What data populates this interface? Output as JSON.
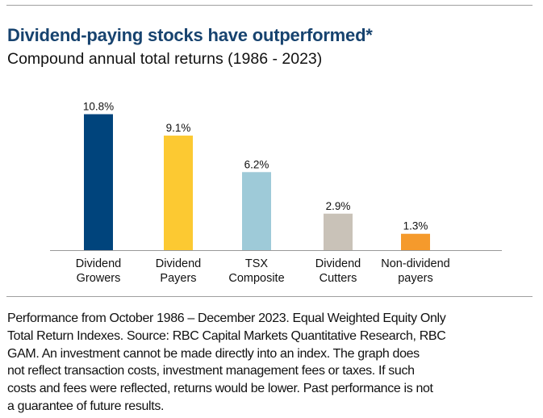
{
  "chart_data": {
    "type": "bar",
    "title": "Dividend-paying stocks have outperformed*",
    "subtitle": "Compound annual total returns (1986 - 2023)",
    "xlabel": "",
    "ylabel": "",
    "ylim": [
      0,
      12
    ],
    "grid": false,
    "categories": [
      [
        "Dividend",
        "Growers"
      ],
      [
        "Dividend",
        "Payers"
      ],
      [
        "TSX",
        "Composite"
      ],
      [
        "Dividend",
        "Cutters"
      ],
      [
        "Non-dividend",
        "payers"
      ]
    ],
    "values": [
      10.8,
      9.1,
      6.2,
      2.9,
      1.3
    ],
    "data_labels": [
      "10.8%",
      "9.1%",
      "6.2%",
      "2.9%",
      "1.3%"
    ],
    "colors": [
      "#00447c",
      "#fcc932",
      "#9ecad8",
      "#c9c2b8",
      "#f59a2c"
    ]
  },
  "footer_lines": [
    "Performance from October 1986 – December 2023. Equal Weighted Equity Only",
    "Total Return Indexes. Source: RBC Capital Markets Quantitative Research, RBC",
    "GAM. An investment cannot be made directly into an index. The graph does",
    "not reflect transaction costs, investment management fees or taxes. If such",
    "costs and fees were reflected, returns would be lower. Past performance is not",
    "a guarantee of future results."
  ]
}
